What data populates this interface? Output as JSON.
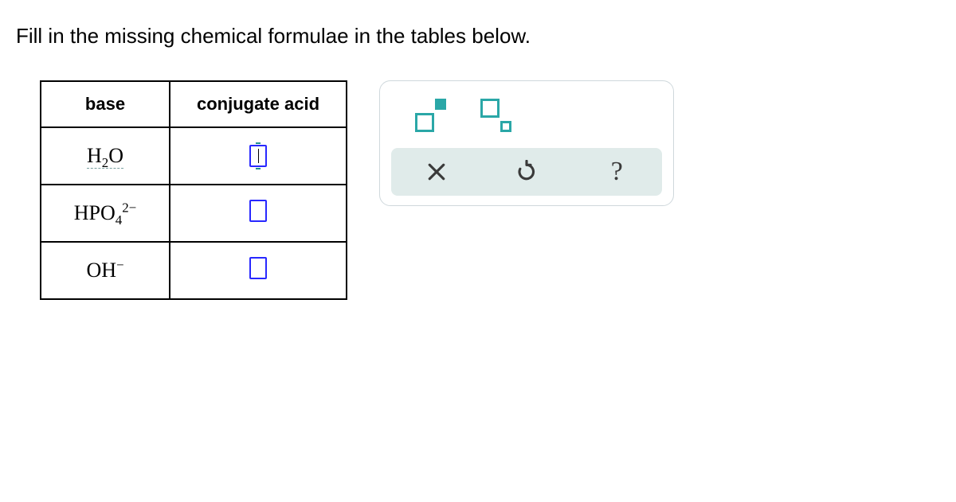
{
  "prompt": "Fill in the missing chemical formulae in the tables below.",
  "table": {
    "headers": {
      "base": "base",
      "acid": "conjugate acid"
    },
    "colWidths": {
      "base": 160,
      "acid": 220
    },
    "rows": [
      {
        "base_html": "<span class='dashed'>H<sub>2</sub>O</span>",
        "acid_state": "active"
      },
      {
        "base_html": "HPO<sub>4</sub><sup>2−</sup>",
        "acid_state": "empty"
      },
      {
        "base_html": "OH<sup>−</sup>",
        "acid_state": "empty"
      }
    ]
  },
  "tools": {
    "superscript": {
      "name": "superscript-tool"
    },
    "subscript": {
      "name": "subscript-tool"
    }
  },
  "actions": {
    "clear": "clear",
    "reset": "reset",
    "help": "?"
  },
  "colors": {
    "accent": "#2aa7a7",
    "slotBorder": "#2828ff",
    "panelBorder": "#cfd8dc",
    "actionBg": "#e0ebea"
  }
}
